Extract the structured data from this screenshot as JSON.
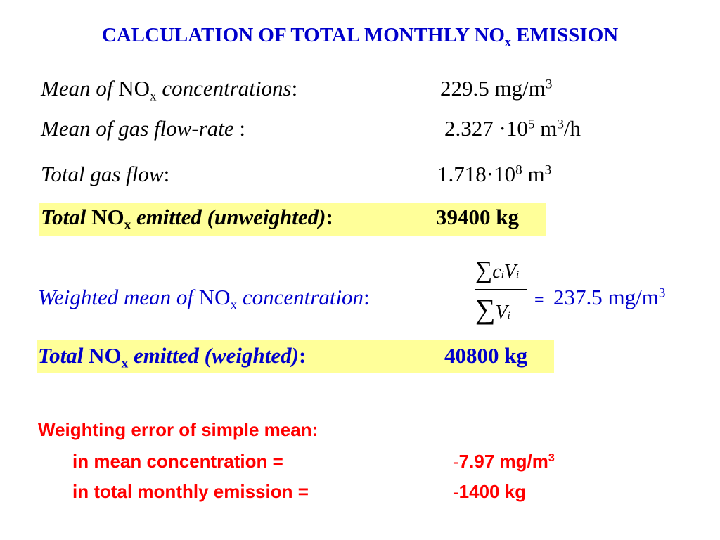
{
  "title": {
    "main": "CALCULATION OF TOTAL MONTHLY NO",
    "sub": "x",
    "tail": " EMISSION"
  },
  "rows": {
    "mean_conc": {
      "label_a": "Mean  of ",
      "label_b": "NO",
      "label_sub": "x",
      "label_c": " concentrations",
      "label_colon": ":",
      "value": "229.5 mg/m",
      "value_sup": "3"
    },
    "mean_flow": {
      "label": "Mean  of gas flow-rate",
      "label_colon": " :",
      "value": "2.327 ·10",
      "value_sup": "5",
      "unit": " m",
      "unit_sup": "3",
      "unit_tail": "/h"
    },
    "total_flow": {
      "label": "Total gas flow",
      "label_colon": ":",
      "value": "1.718·10",
      "value_sup": "8",
      "unit": "  m",
      "unit_sup": "3"
    },
    "total_unweighted": {
      "label_a": "Total ",
      "label_b": "NO",
      "label_sub": "x",
      "label_c": " emitted (unweighted)",
      "label_colon": ":",
      "value": "39400 kg"
    }
  },
  "weighted": {
    "label_a": "Weighted mean of ",
    "label_b": "NO",
    "label_sub": "x",
    "label_c": " concentration",
    "label_colon": ":",
    "formula": {
      "sigma": "∑",
      "num_c": "c",
      "num_v": "V",
      "idx": "i",
      "den_v": "V",
      "equals": "="
    },
    "value": "237.5 mg/m",
    "value_sup": "3"
  },
  "total_weighted": {
    "label_a": "Total ",
    "label_b": "NO",
    "label_sub": "x",
    "label_c": " emitted (weighted)",
    "label_colon": ":",
    "value": "40800 kg"
  },
  "error": {
    "heading": "Weighting error of simple mean:",
    "conc_label": "in mean concentration =",
    "conc_sign": "-",
    "conc_value": "7.97 mg/m",
    "conc_sup": "3",
    "emis_label": "in total monthly emission =",
    "emis_sign": "-",
    "emis_value": "1400 kg"
  },
  "colors": {
    "blue": "#0000cc",
    "red": "#ff0000",
    "highlight": "#ffff99"
  }
}
